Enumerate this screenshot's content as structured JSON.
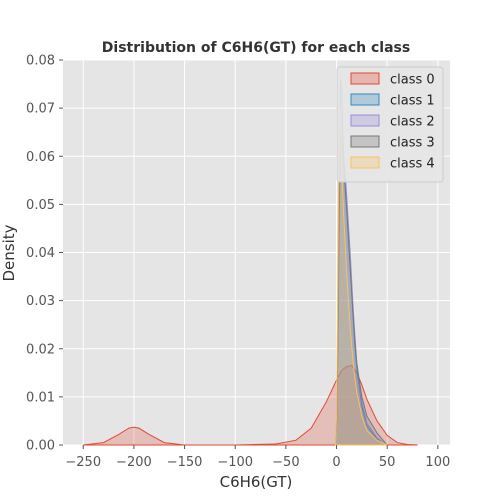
{
  "chart_data": {
    "type": "area",
    "title": "Distribution of C6H6(GT) for each class",
    "xlabel": "C6H6(GT)",
    "ylabel": "Density",
    "xlim": [
      -270,
      112
    ],
    "ylim": [
      0,
      0.08
    ],
    "x_ticks": [
      -250,
      -200,
      -150,
      -100,
      -50,
      0,
      50,
      100
    ],
    "x_tick_labels": [
      "−250",
      "−200",
      "−150",
      "−100",
      "−50",
      "0",
      "50",
      "100"
    ],
    "y_ticks": [
      0,
      0.01,
      0.02,
      0.03,
      0.04,
      0.05,
      0.06,
      0.07,
      0.08
    ],
    "y_tick_labels": [
      "0.00",
      "0.01",
      "0.02",
      "0.03",
      "0.04",
      "0.05",
      "0.06",
      "0.07",
      "0.08"
    ],
    "grid": true,
    "legend_position": "top-right",
    "series": [
      {
        "name": "class 0",
        "color": "#E24A33",
        "x": [
          -250,
          -230,
          -215,
          -205,
          -200,
          -195,
          -185,
          -170,
          -150,
          -100,
          -60,
          -40,
          -25,
          -10,
          0,
          5,
          10,
          15,
          20,
          25,
          30,
          40,
          50,
          60,
          70,
          80
        ],
        "y": [
          0,
          0.0005,
          0.0022,
          0.0035,
          0.0037,
          0.0035,
          0.0022,
          0.0005,
          0,
          0,
          0.0002,
          0.001,
          0.0035,
          0.009,
          0.0135,
          0.0155,
          0.0163,
          0.0165,
          0.015,
          0.0125,
          0.0095,
          0.005,
          0.002,
          0.0005,
          0.0001,
          0
        ]
      },
      {
        "name": "class 1",
        "color": "#348ABD",
        "x": [
          -1,
          0,
          1,
          2,
          3,
          4,
          5,
          6,
          7,
          8,
          9,
          10,
          12,
          14,
          16,
          18,
          20,
          25,
          30,
          40,
          45,
          50
        ],
        "y": [
          0,
          0.005,
          0.02,
          0.045,
          0.068,
          0.076,
          0.074,
          0.066,
          0.06,
          0.057,
          0.053,
          0.05,
          0.043,
          0.036,
          0.028,
          0.021,
          0.016,
          0.008,
          0.004,
          0.0012,
          0.0006,
          0
        ]
      },
      {
        "name": "class 2",
        "color": "#988ED5",
        "x": [
          -1,
          0,
          1,
          2,
          3,
          4,
          5,
          6,
          7,
          8,
          9,
          10,
          12,
          14,
          16,
          18,
          20,
          25,
          30,
          40,
          45,
          50
        ],
        "y": [
          0,
          0.004,
          0.016,
          0.036,
          0.056,
          0.066,
          0.068,
          0.064,
          0.06,
          0.058,
          0.055,
          0.052,
          0.045,
          0.038,
          0.03,
          0.023,
          0.017,
          0.009,
          0.0045,
          0.0015,
          0.0007,
          0
        ]
      },
      {
        "name": "class 3",
        "color": "#777777",
        "x": [
          -1,
          0,
          1,
          2,
          3,
          4,
          5,
          6,
          7,
          8,
          9,
          10,
          12,
          14,
          16,
          18,
          20,
          25,
          30,
          40,
          45,
          50
        ],
        "y": [
          0,
          0.004,
          0.015,
          0.034,
          0.052,
          0.062,
          0.064,
          0.061,
          0.058,
          0.055,
          0.052,
          0.049,
          0.042,
          0.035,
          0.028,
          0.022,
          0.017,
          0.01,
          0.006,
          0.0025,
          0.0012,
          0
        ]
      },
      {
        "name": "class 4",
        "color": "#FBC15E",
        "x": [
          -1,
          0,
          1,
          2,
          3,
          4,
          5,
          6,
          7,
          8,
          9,
          10,
          12,
          14,
          16,
          18,
          20,
          25,
          30,
          40,
          45,
          50
        ],
        "y": [
          0,
          0.006,
          0.028,
          0.058,
          0.07,
          0.066,
          0.059,
          0.053,
          0.048,
          0.044,
          0.04,
          0.036,
          0.029,
          0.023,
          0.018,
          0.014,
          0.011,
          0.006,
          0.003,
          0.001,
          0.0005,
          0
        ]
      }
    ]
  }
}
